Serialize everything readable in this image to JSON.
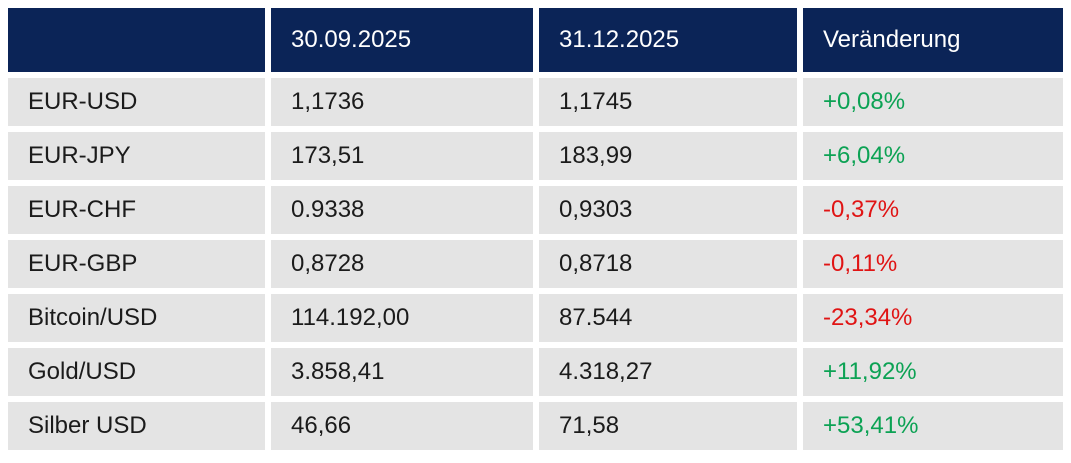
{
  "colors": {
    "header_bg": "#0b2457",
    "header_text": "#ffffff",
    "row_bg": "#e4e4e4",
    "body_text": "#1b1b1b",
    "positive": "#0ca254",
    "negative": "#e01414",
    "page_bg": "#ffffff"
  },
  "chart_data": {
    "type": "table",
    "title": "",
    "columns": [
      "",
      "30.09.2025",
      "31.12.2025",
      "Veränderung"
    ],
    "rows": [
      {
        "label": "EUR-USD",
        "values": [
          "1,1736",
          "1,1745"
        ],
        "change": "+0,08%",
        "direction": "up"
      },
      {
        "label": "EUR-JPY",
        "values": [
          "173,51",
          "183,99"
        ],
        "change": "+6,04%",
        "direction": "up"
      },
      {
        "label": "EUR-CHF",
        "values": [
          "0.9338",
          "0,9303"
        ],
        "change": "-0,37%",
        "direction": "down"
      },
      {
        "label": "EUR-GBP",
        "values": [
          "0,8728",
          "0,8718"
        ],
        "change": "-0,11%",
        "direction": "down"
      },
      {
        "label": "Bitcoin/USD",
        "values": [
          "114.192,00",
          "87.544"
        ],
        "change": "-23,34%",
        "direction": "down"
      },
      {
        "label": "Gold/USD",
        "values": [
          "3.858,41",
          "4.318,27"
        ],
        "change": "+11,92%",
        "direction": "up"
      },
      {
        "label": "Silber USD",
        "values": [
          "46,66",
          "71,58"
        ],
        "change": "+53,41%",
        "direction": "up"
      }
    ]
  }
}
